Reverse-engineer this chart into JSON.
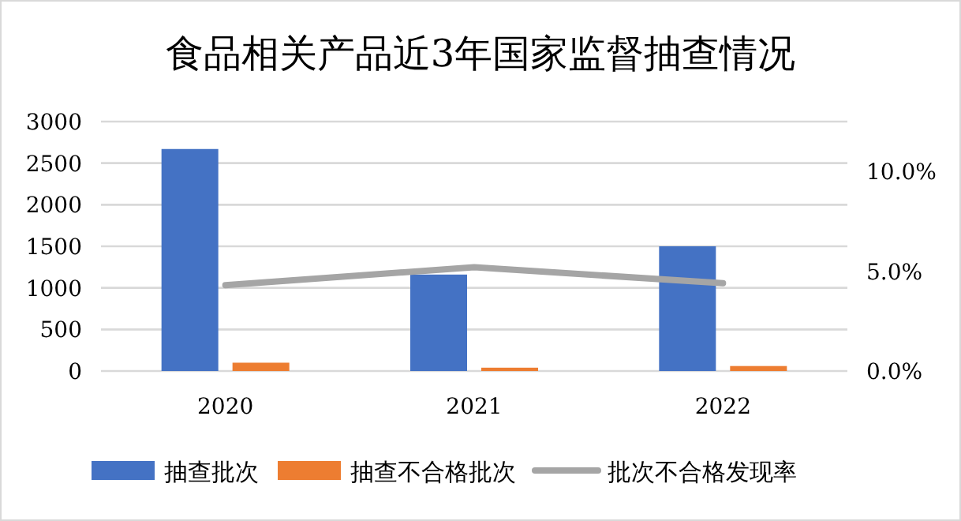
{
  "chart_data": {
    "type": "bar",
    "title": "食品相关产品近3年国家监督抽查情况",
    "categories": [
      "2020",
      "2021",
      "2022"
    ],
    "series": [
      {
        "name": "抽查批次",
        "color": "#4472c4",
        "values": [
          2670,
          1160,
          1500
        ]
      },
      {
        "name": "抽查不合格批次",
        "color": "#ed7d31",
        "values": [
          100,
          40,
          60
        ]
      },
      {
        "name": "批次不合格发现率",
        "color": "#a5a5a5",
        "type": "line",
        "axis": "y2",
        "values": [
          4.3,
          5.2,
          4.4
        ]
      }
    ],
    "ylim": [
      0,
      3000
    ],
    "yticks": [
      0,
      500,
      1000,
      1500,
      2000,
      2500,
      3000
    ],
    "y2lim": [
      0,
      12.5
    ],
    "y2ticks": [
      {
        "value": 0,
        "label": "0.0%"
      },
      {
        "value": 5,
        "label": "5.0%"
      },
      {
        "value": 10,
        "label": "10.0%"
      }
    ],
    "grid": "y",
    "legend": "bottom"
  }
}
